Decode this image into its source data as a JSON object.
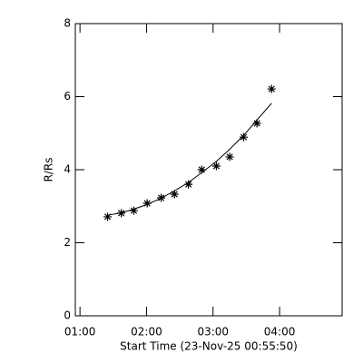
{
  "chart_data": {
    "type": "scatter",
    "x_label": "Start Time (23-Nov-25 00:55:50)",
    "y_label": "R/Rs",
    "x": [
      1.415,
      1.62,
      1.81,
      2.01,
      2.22,
      2.42,
      2.63,
      2.83,
      3.05,
      3.25,
      3.46,
      3.66,
      3.88
    ],
    "series": [
      {
        "color": "#000000",
        "marker": "asterisk",
        "values": [
          2.71,
          2.81,
          2.88,
          3.08,
          3.23,
          3.33,
          3.6,
          4.0,
          4.1,
          4.35,
          4.89,
          5.27,
          6.21
        ]
      },
      {
        "color": "#000000",
        "marker": "line",
        "values": [
          2.75,
          2.82,
          2.92,
          3.05,
          3.22,
          3.42,
          3.65,
          3.92,
          4.23,
          4.56,
          4.94,
          5.36,
          5.82
        ]
      }
    ],
    "xlim": [
      0.93,
      4.94
    ],
    "xticks": [
      {
        "value": 1,
        "label": "01:00"
      },
      {
        "value": 2,
        "label": "02:00"
      },
      {
        "value": 3,
        "label": "03:00"
      },
      {
        "value": 4,
        "label": "04:00"
      }
    ],
    "ylim": [
      0,
      8
    ],
    "yticks": [
      0,
      2,
      4,
      6,
      8
    ],
    "grid": false
  }
}
